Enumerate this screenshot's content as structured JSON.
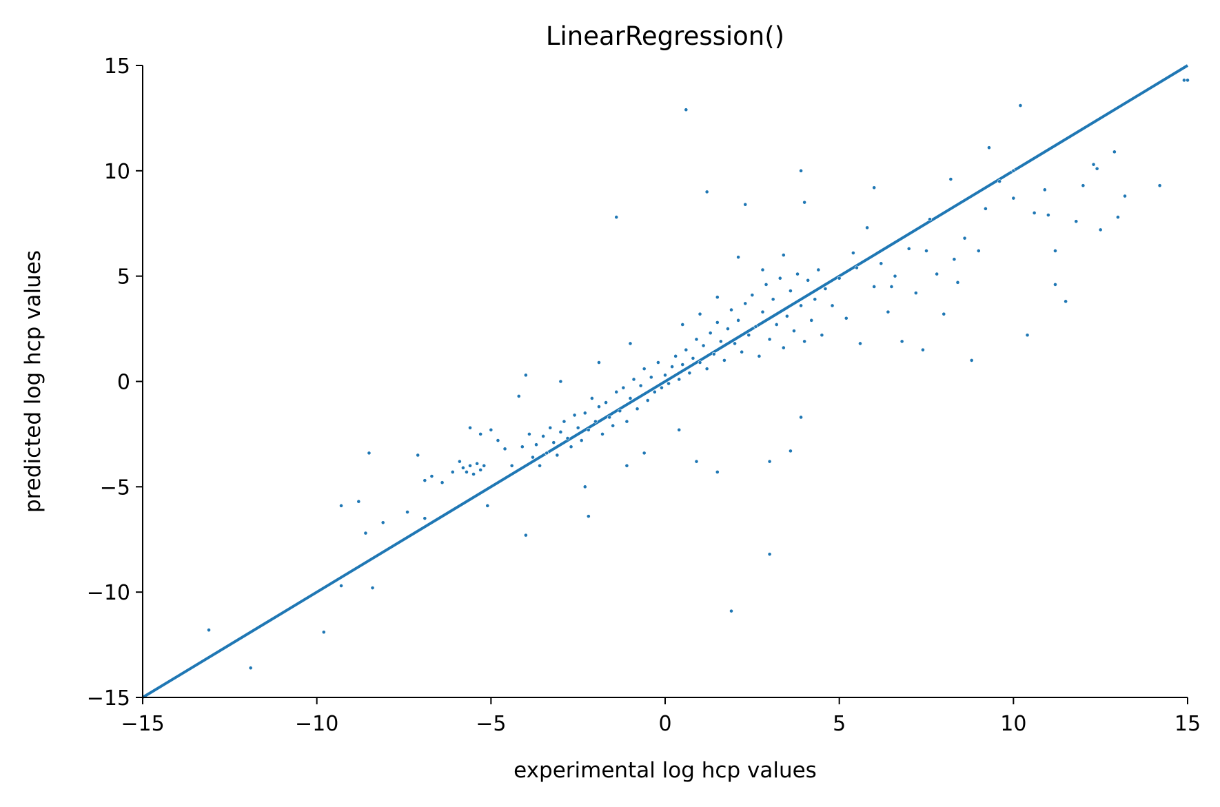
{
  "chart_data": {
    "type": "scatter",
    "title": "LinearRegression()",
    "xlabel": "experimental log hcp values",
    "ylabel": "predicted log hcp values",
    "xlim": [
      -15,
      15
    ],
    "ylim": [
      -15,
      15
    ],
    "x_ticks": [
      -15,
      -10,
      -5,
      0,
      5,
      10,
      15
    ],
    "y_ticks": [
      -15,
      -10,
      -5,
      0,
      5,
      10,
      15
    ],
    "x_tick_labels": [
      "−15",
      "−10",
      "−5",
      "0",
      "5",
      "10",
      "15"
    ],
    "y_tick_labels": [
      "−15",
      "−10",
      "−5",
      "0",
      "5",
      "10",
      "15"
    ],
    "grid": false,
    "legend": "none",
    "colors": {
      "points": "#1f77b4",
      "line": "#1f77b4",
      "axes": "#000000"
    },
    "reference_line": {
      "x": [
        -15,
        15
      ],
      "y": [
        -15,
        15
      ]
    },
    "series": [
      {
        "values": [
          [
            -13.1,
            -11.8
          ],
          [
            -11.9,
            -13.6
          ],
          [
            -9.8,
            -11.9
          ],
          [
            -9.3,
            -9.7
          ],
          [
            -8.4,
            -9.8
          ],
          [
            -9.3,
            -5.9
          ],
          [
            -8.8,
            -5.7
          ],
          [
            -8.6,
            -7.2
          ],
          [
            -8.5,
            -3.4
          ],
          [
            -8.1,
            -6.7
          ],
          [
            -7.4,
            -6.2
          ],
          [
            -7.1,
            -3.5
          ],
          [
            -6.9,
            -6.5
          ],
          [
            -6.9,
            -4.7
          ],
          [
            -6.7,
            -4.5
          ],
          [
            -6.4,
            -4.8
          ],
          [
            -6.1,
            -4.3
          ],
          [
            -5.9,
            -3.8
          ],
          [
            -5.8,
            -4.1
          ],
          [
            -5.7,
            -4.3
          ],
          [
            -5.6,
            -4.0
          ],
          [
            -5.5,
            -4.4
          ],
          [
            -5.4,
            -3.9
          ],
          [
            -5.3,
            -4.2
          ],
          [
            -5.2,
            -4.0
          ],
          [
            -5.6,
            -2.2
          ],
          [
            -5.3,
            -2.5
          ],
          [
            -5.0,
            -2.3
          ],
          [
            -4.8,
            -2.8
          ],
          [
            -4.6,
            -3.2
          ],
          [
            -5.1,
            -5.9
          ],
          [
            -4.4,
            -4.0
          ],
          [
            -4.2,
            -0.7
          ],
          [
            -4.1,
            -3.1
          ],
          [
            -4.0,
            -7.3
          ],
          [
            -3.9,
            -2.5
          ],
          [
            -3.8,
            -3.6
          ],
          [
            -3.7,
            -3.0
          ],
          [
            -3.6,
            -4.0
          ],
          [
            -3.5,
            -2.6
          ],
          [
            -3.4,
            -3.4
          ],
          [
            -3.3,
            -2.2
          ],
          [
            -3.2,
            -2.9
          ],
          [
            -3.1,
            -3.5
          ],
          [
            -3.0,
            -2.4
          ],
          [
            -2.9,
            -1.9
          ],
          [
            -2.8,
            -2.7
          ],
          [
            -2.7,
            -3.1
          ],
          [
            -2.6,
            -1.6
          ],
          [
            -2.5,
            -2.2
          ],
          [
            -2.4,
            -2.8
          ],
          [
            -2.3,
            -1.5
          ],
          [
            -2.2,
            -2.3
          ],
          [
            -2.1,
            -0.8
          ],
          [
            -2.0,
            -1.9
          ],
          [
            -1.9,
            -1.2
          ],
          [
            -1.8,
            -2.5
          ],
          [
            -1.7,
            -1.0
          ],
          [
            -1.6,
            -1.7
          ],
          [
            -1.5,
            -2.1
          ],
          [
            -1.4,
            -0.5
          ],
          [
            -1.3,
            -1.4
          ],
          [
            -1.2,
            -0.3
          ],
          [
            -1.1,
            -1.9
          ],
          [
            -1.0,
            -0.8
          ],
          [
            -0.9,
            0.1
          ],
          [
            -0.8,
            -1.3
          ],
          [
            -0.7,
            -0.2
          ],
          [
            -0.6,
            0.6
          ],
          [
            -0.5,
            -0.9
          ],
          [
            -0.4,
            0.2
          ],
          [
            -0.3,
            -0.5
          ],
          [
            -0.2,
            0.9
          ],
          [
            -0.1,
            -0.3
          ],
          [
            0.0,
            0.3
          ],
          [
            0.1,
            -0.1
          ],
          [
            0.2,
            0.7
          ],
          [
            0.3,
            1.2
          ],
          [
            0.4,
            0.1
          ],
          [
            0.5,
            0.8
          ],
          [
            0.6,
            1.5
          ],
          [
            0.7,
            0.4
          ],
          [
            0.8,
            1.1
          ],
          [
            0.9,
            2.0
          ],
          [
            1.0,
            0.9
          ],
          [
            1.1,
            1.7
          ],
          [
            1.2,
            0.6
          ],
          [
            1.3,
            2.3
          ],
          [
            1.4,
            1.3
          ],
          [
            1.5,
            2.8
          ],
          [
            1.6,
            1.9
          ],
          [
            1.7,
            1.0
          ],
          [
            1.8,
            2.5
          ],
          [
            1.9,
            3.4
          ],
          [
            2.0,
            1.8
          ],
          [
            2.1,
            2.9
          ],
          [
            2.2,
            1.4
          ],
          [
            2.3,
            3.7
          ],
          [
            2.4,
            2.2
          ],
          [
            2.5,
            4.1
          ],
          [
            2.6,
            2.6
          ],
          [
            2.7,
            1.2
          ],
          [
            2.8,
            3.3
          ],
          [
            2.9,
            4.6
          ],
          [
            3.0,
            2.0
          ],
          [
            3.1,
            3.9
          ],
          [
            3.2,
            2.7
          ],
          [
            3.3,
            4.9
          ],
          [
            3.4,
            1.6
          ],
          [
            3.5,
            3.1
          ],
          [
            3.6,
            4.3
          ],
          [
            3.7,
            2.4
          ],
          [
            3.8,
            5.1
          ],
          [
            3.9,
            3.6
          ],
          [
            4.0,
            1.9
          ],
          [
            4.1,
            4.8
          ],
          [
            4.2,
            2.9
          ],
          [
            4.3,
            3.9
          ],
          [
            4.4,
            5.3
          ],
          [
            4.5,
            2.2
          ],
          [
            4.6,
            4.4
          ],
          [
            4.8,
            3.6
          ],
          [
            5.0,
            4.9
          ],
          [
            5.2,
            3.0
          ],
          [
            5.4,
            6.1
          ],
          [
            5.6,
            1.8
          ],
          [
            5.8,
            7.3
          ],
          [
            6.0,
            4.5
          ],
          [
            6.2,
            5.6
          ],
          [
            6.4,
            3.3
          ],
          [
            6.6,
            5.0
          ],
          [
            6.8,
            1.9
          ],
          [
            7.0,
            6.3
          ],
          [
            7.2,
            4.2
          ],
          [
            7.4,
            1.5
          ],
          [
            7.6,
            7.7
          ],
          [
            7.8,
            5.1
          ],
          [
            8.0,
            3.2
          ],
          [
            8.2,
            9.6
          ],
          [
            8.4,
            4.7
          ],
          [
            8.6,
            6.8
          ],
          [
            8.8,
            1.0
          ],
          [
            9.0,
            6.2
          ],
          [
            9.3,
            11.1
          ],
          [
            9.6,
            9.5
          ],
          [
            10.0,
            10.0
          ],
          [
            10.2,
            13.1
          ],
          [
            10.4,
            2.2
          ],
          [
            10.6,
            8.0
          ],
          [
            10.9,
            9.1
          ],
          [
            11.2,
            6.2
          ],
          [
            11.5,
            3.8
          ],
          [
            11.8,
            7.6
          ],
          [
            12.0,
            9.3
          ],
          [
            12.3,
            10.3
          ],
          [
            12.5,
            7.2
          ],
          [
            12.9,
            10.9
          ],
          [
            13.2,
            8.8
          ],
          [
            14.2,
            9.3
          ],
          [
            14.9,
            14.3
          ],
          [
            15.0,
            14.3
          ],
          [
            0.6,
            12.9
          ],
          [
            -1.4,
            7.8
          ],
          [
            1.2,
            9.0
          ],
          [
            1.9,
            -10.9
          ],
          [
            3.0,
            -8.2
          ],
          [
            3.9,
            10.0
          ],
          [
            2.3,
            8.4
          ],
          [
            4.0,
            8.5
          ],
          [
            6.0,
            9.2
          ],
          [
            1.5,
            -4.3
          ],
          [
            0.9,
            -3.8
          ],
          [
            3.0,
            -3.8
          ],
          [
            3.6,
            -3.3
          ],
          [
            3.9,
            -1.7
          ],
          [
            -2.3,
            -5.0
          ],
          [
            -2.2,
            -6.4
          ],
          [
            -1.1,
            -4.0
          ],
          [
            -0.6,
            -3.4
          ],
          [
            0.4,
            -2.3
          ],
          [
            -4.0,
            0.3
          ],
          [
            -3.0,
            0.0
          ],
          [
            -1.9,
            0.9
          ],
          [
            -1.0,
            1.8
          ],
          [
            0.5,
            2.7
          ],
          [
            1.0,
            3.2
          ],
          [
            1.5,
            4.0
          ],
          [
            2.1,
            5.9
          ],
          [
            2.8,
            5.3
          ],
          [
            3.4,
            6.0
          ],
          [
            5.5,
            5.4
          ],
          [
            6.5,
            4.5
          ],
          [
            7.5,
            6.2
          ],
          [
            8.3,
            5.8
          ],
          [
            9.2,
            8.2
          ],
          [
            10.0,
            8.7
          ],
          [
            11.0,
            7.9
          ],
          [
            11.2,
            4.6
          ],
          [
            12.4,
            10.1
          ],
          [
            13.0,
            7.8
          ]
        ]
      }
    ]
  }
}
